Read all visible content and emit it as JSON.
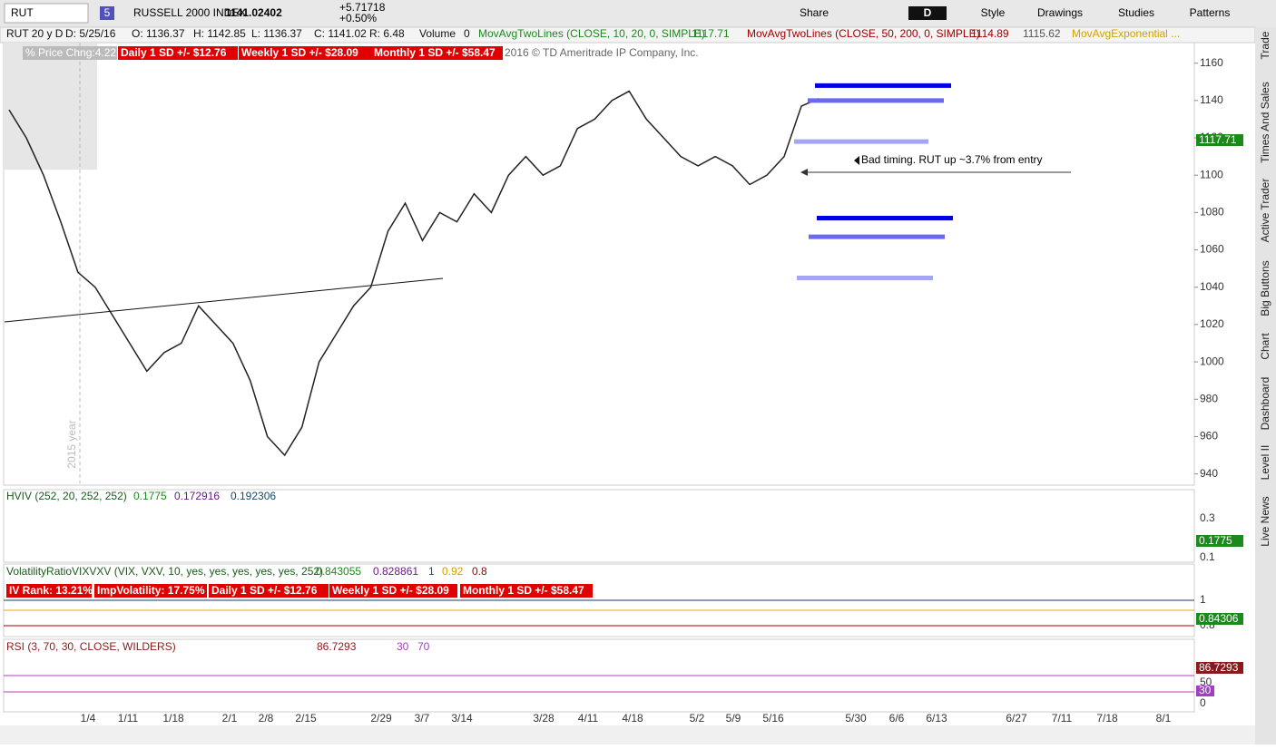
{
  "toolbar": {
    "symbol": "RUT",
    "badge": "5",
    "name": "RUSSELL 2000 INDEX",
    "price": "1141.02402",
    "change": "+5.71718",
    "percent": "+0.50%",
    "buttons": [
      "Share",
      "D",
      "Style",
      "Drawings",
      "Studies",
      "Patterns"
    ]
  },
  "info_bar": [
    "RUT 20 y D",
    "D: 5/25/16",
    "O: 1136.37",
    "H: 1142.85",
    "L: 1136.37",
    "C: 1141.02",
    "R: 6.48",
    "Volume",
    "0",
    "MovAvgTwoLines (CLOSE, 10, 20, 0, SIMPLE)",
    "1117.71",
    "MovAvgTwoLines (CLOSE, 50, 200, 0, SIMPLE)",
    "1114.89",
    "1115.62",
    "MovAvgExponential ..."
  ],
  "badges": [
    "% Price Chng:4.22",
    "Daily 1 SD +/- $12.76",
    "Weekly 1 SD +/- $28.09",
    "Monthly 1 SD +/- $58.47"
  ],
  "copyright": "2016 © TD Ameritrade IP Company, Inc.",
  "year_label": "2015 year",
  "chart_data": {
    "type": "line",
    "color": "#222222",
    "ylim": [
      934,
      1171
    ],
    "yticks": [
      940,
      960,
      980,
      1000,
      1020,
      1040,
      1060,
      1080,
      1100,
      1120,
      1140,
      1160
    ],
    "values": [
      1135,
      1120,
      1100,
      1075,
      1048,
      1040,
      1025,
      1010,
      995,
      1005,
      1010,
      1030,
      1020,
      1010,
      990,
      960,
      950,
      965,
      1000,
      1015,
      1030,
      1040,
      1070,
      1085,
      1065,
      1080,
      1075,
      1090,
      1080,
      1100,
      1110,
      1100,
      1105,
      1125,
      1130,
      1140,
      1145,
      1130,
      1120,
      1110,
      1105,
      1110,
      1105,
      1095,
      1100,
      1110,
      1137,
      1141
    ],
    "levels": [
      {
        "value": 1148,
        "color": "#0000e6"
      },
      {
        "value": 1140,
        "color": "#6a6af0"
      },
      {
        "value": 1118,
        "color": "#a5a5f5"
      },
      {
        "value": 1077,
        "color": "#0000e6"
      },
      {
        "value": 1067,
        "color": "#6a6af0"
      },
      {
        "value": 1045,
        "color": "#a5a5f5"
      }
    ],
    "price_label": "1117.71",
    "annotation": "Bad timing.  RUT up ~3.7% from entry"
  },
  "x_labels": [
    "1/4",
    "1/11",
    "1/18",
    "2/1",
    "2/8",
    "2/15",
    "2/29",
    "3/7",
    "3/14",
    "3/28",
    "4/11",
    "4/18",
    "5/2",
    "5/9",
    "5/16",
    "5/30",
    "6/6",
    "6/13",
    "6/27",
    "7/11",
    "7/18",
    "8/1"
  ],
  "panels": [
    {
      "header": [
        "HVIV (252, 20, 252, 252)",
        "0.1775",
        "0.172916",
        "0.192306"
      ],
      "axis": [
        "0.3",
        "0.1"
      ],
      "box": "0.1775"
    },
    {
      "header": [
        "VolatilityRatioVIXVXV (VIX, VXV, 10, yes, yes, yes, yes, yes, 252)",
        "0.843055",
        "0.828861",
        "1",
        "0.92",
        "0.8"
      ],
      "badges": [
        "IV Rank: 13.21%",
        "ImpVolatility: 17.75%",
        "Daily 1 SD +/- $12.76",
        "Weekly 1 SD +/- $28.09",
        "Monthly 1 SD +/- $58.47"
      ],
      "axis": [
        "1",
        "0.8"
      ],
      "box": "0.84306"
    },
    {
      "header": [
        "RSI (3, 70, 30, CLOSE, WILDERS)",
        "86.7293",
        "30",
        "70"
      ],
      "axis": [
        "50",
        "0"
      ],
      "box": "86.7293",
      "box2": "30"
    }
  ],
  "sidebar": [
    "Trade",
    "Times And Sales",
    "Active Trader",
    "Big Buttons",
    "Chart",
    "Dashboard",
    "Level II",
    "Live News"
  ]
}
